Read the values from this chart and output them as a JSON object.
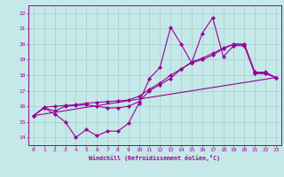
{
  "xlabel": "Windchill (Refroidissement éolien,°C)",
  "xlim": [
    -0.5,
    23.5
  ],
  "ylim": [
    13.5,
    22.5
  ],
  "yticks": [
    14,
    15,
    16,
    17,
    18,
    19,
    20,
    21,
    22
  ],
  "xticks": [
    0,
    1,
    2,
    3,
    4,
    5,
    6,
    7,
    8,
    9,
    10,
    11,
    12,
    13,
    14,
    15,
    16,
    17,
    18,
    19,
    20,
    21,
    22,
    23
  ],
  "background_color": "#c5e8e8",
  "line_color": "#990099",
  "grid_color": "#a8cccc",
  "line1_x": [
    0,
    1,
    2,
    3,
    4,
    5,
    6,
    7,
    8,
    9,
    10,
    11,
    12,
    13,
    14,
    15,
    16,
    17,
    18,
    19,
    20,
    21,
    22,
    23
  ],
  "line1_y": [
    15.4,
    15.9,
    15.5,
    15.0,
    14.0,
    14.5,
    14.1,
    14.4,
    14.4,
    14.9,
    16.2,
    17.8,
    18.5,
    21.1,
    20.0,
    18.8,
    20.7,
    21.7,
    19.2,
    19.9,
    19.9,
    18.1,
    18.1,
    17.85
  ],
  "line2_x": [
    0,
    1,
    2,
    3,
    4,
    5,
    6,
    7,
    8,
    9,
    10,
    11,
    12,
    13,
    14,
    15,
    16,
    17,
    18,
    19,
    20,
    21,
    22,
    23
  ],
  "line2_y": [
    15.4,
    15.9,
    15.7,
    16.0,
    16.05,
    16.1,
    16.0,
    15.9,
    15.9,
    16.0,
    16.3,
    17.0,
    17.4,
    17.8,
    18.4,
    18.8,
    19.0,
    19.3,
    19.7,
    20.0,
    20.0,
    18.15,
    18.15,
    17.85
  ],
  "line3_x": [
    0,
    23
  ],
  "line3_y": [
    15.4,
    17.85
  ],
  "line4_x": [
    0,
    1,
    2,
    3,
    4,
    5,
    6,
    7,
    8,
    9,
    10,
    11,
    12,
    13,
    14,
    15,
    16,
    17,
    18,
    19,
    20,
    21,
    22,
    23
  ],
  "line4_y": [
    15.4,
    15.95,
    16.0,
    16.05,
    16.1,
    16.2,
    16.25,
    16.3,
    16.35,
    16.4,
    16.65,
    17.1,
    17.5,
    18.0,
    18.4,
    18.85,
    19.1,
    19.4,
    19.75,
    20.0,
    20.0,
    18.2,
    18.2,
    17.85
  ]
}
